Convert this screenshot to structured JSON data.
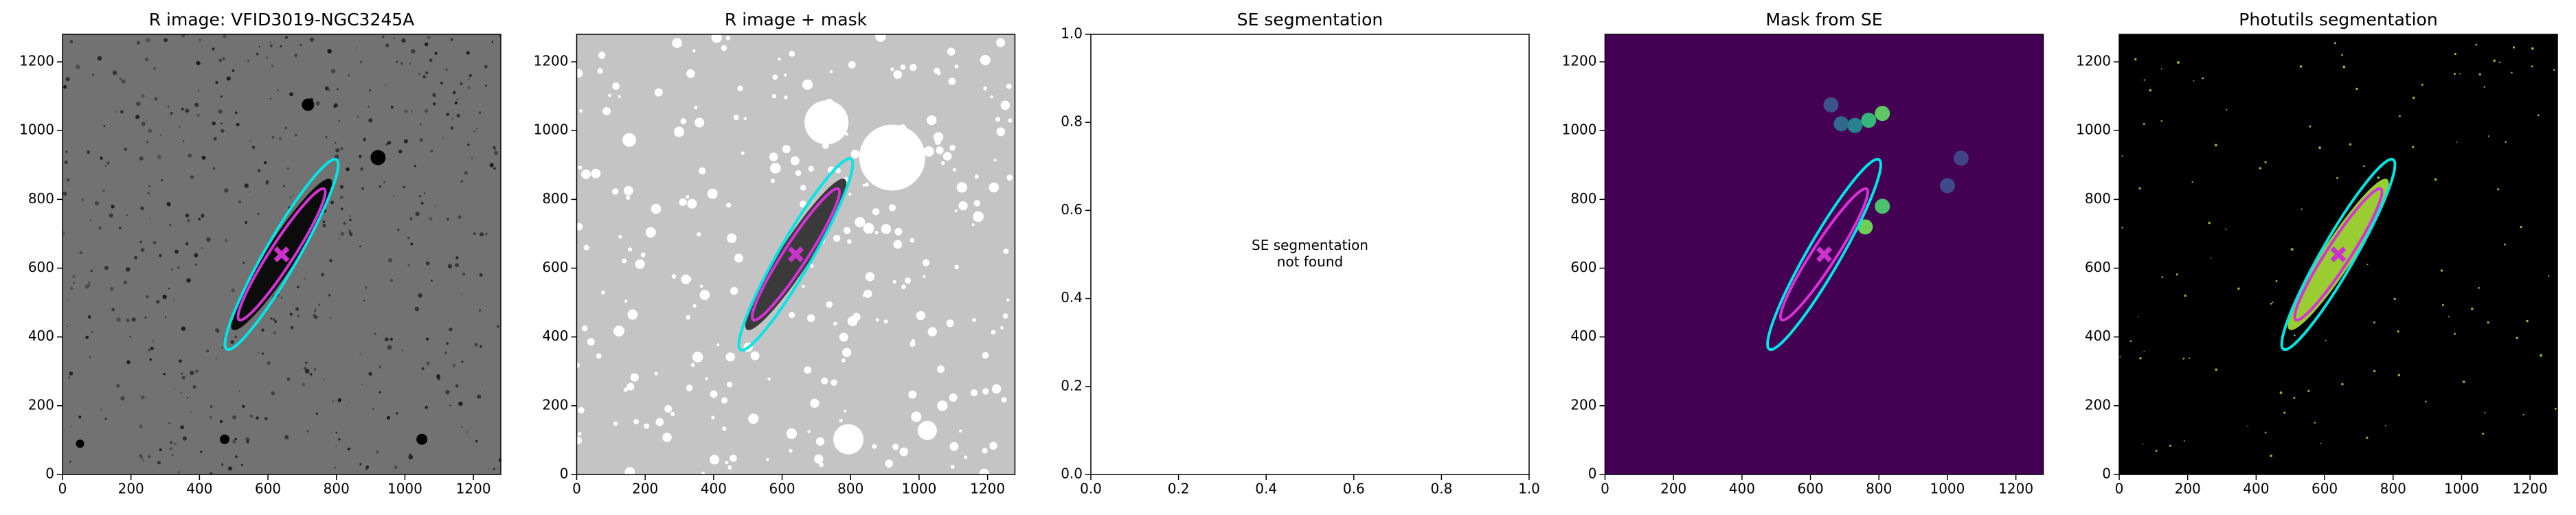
{
  "chart_data": [
    {
      "type": "image",
      "title": "R image: VFID3019-NGC3245A",
      "background": "#727272",
      "xlim": [
        0,
        1280
      ],
      "ylim": [
        0,
        1280
      ],
      "xticks": [
        0,
        200,
        400,
        600,
        800,
        1000,
        1200
      ],
      "yticks": [
        0,
        200,
        400,
        600,
        800,
        1000,
        1200
      ],
      "ellipses": [
        {
          "color": "#00e5e5",
          "cx": 640,
          "cy": 640,
          "a": 320,
          "b": 48,
          "theta": 60
        },
        {
          "color": "#d633d6",
          "cx": 640,
          "cy": 640,
          "a": 228,
          "b": 34,
          "theta": 57
        }
      ],
      "center": {
        "color": "#cc33cc",
        "x": 640,
        "y": 640
      }
    },
    {
      "type": "image",
      "title": "R image + mask",
      "background": "#c4c4c4",
      "xlim": [
        0,
        1280
      ],
      "ylim": [
        0,
        1280
      ],
      "xticks": [
        0,
        200,
        400,
        600,
        800,
        1000,
        1200
      ],
      "yticks": [
        0,
        200,
        400,
        600,
        800,
        1000,
        1200
      ],
      "ellipses": [
        {
          "color": "#00e5e5",
          "cx": 640,
          "cy": 640,
          "a": 322,
          "b": 48,
          "theta": 60
        },
        {
          "color": "#d633d6",
          "cx": 640,
          "cy": 640,
          "a": 228,
          "b": 34,
          "theta": 57
        }
      ],
      "center": {
        "color": "#cc33cc",
        "x": 640,
        "y": 640
      }
    },
    {
      "type": "image",
      "title": "SE segmentation",
      "background": "#ffffff",
      "xlim": [
        0,
        1
      ],
      "ylim": [
        0,
        1
      ],
      "xticks": [
        {
          "value": 0,
          "label": "0.0"
        },
        {
          "value": 0.2,
          "label": "0.2"
        },
        {
          "value": 0.4,
          "label": "0.4"
        },
        {
          "value": 0.6,
          "label": "0.6"
        },
        {
          "value": 0.8,
          "label": "0.8"
        },
        {
          "value": 1,
          "label": "1.0"
        }
      ],
      "yticks": [
        {
          "value": 0,
          "label": "0.0"
        },
        {
          "value": 0.2,
          "label": "0.2"
        },
        {
          "value": 0.4,
          "label": "0.4"
        },
        {
          "value": 0.6,
          "label": "0.6"
        },
        {
          "value": 0.8,
          "label": "0.8"
        },
        {
          "value": 1,
          "label": "1.0"
        }
      ],
      "annotation": [
        "SE segmentation",
        "not found"
      ]
    },
    {
      "type": "image",
      "title": "Mask from SE",
      "background": "#440154",
      "xlim": [
        0,
        1280
      ],
      "ylim": [
        0,
        1280
      ],
      "xticks": [
        0,
        200,
        400,
        600,
        800,
        1000,
        1200
      ],
      "yticks": [
        0,
        200,
        400,
        600,
        800,
        1000,
        1200
      ],
      "blobs": {
        "x": [
          660,
          690,
          730,
          770,
          810,
          1000,
          1040,
          810,
          760
        ],
        "y": [
          1075,
          1020,
          1015,
          1030,
          1050,
          840,
          920,
          780,
          720
        ],
        "colors": [
          "#3b528b",
          "#31688e",
          "#26828e",
          "#35b779",
          "#5ec962",
          "#3e4a89",
          "#414487",
          "#4ac16d",
          "#6ece58"
        ]
      },
      "ellipses": [
        {
          "color": "#00e5e5",
          "cx": 640,
          "cy": 640,
          "a": 320,
          "b": 48,
          "theta": 60
        },
        {
          "color": "#d633d6",
          "cx": 640,
          "cy": 640,
          "a": 228,
          "b": 34,
          "theta": 57
        }
      ],
      "center": {
        "color": "#cc33cc",
        "x": 640,
        "y": 640
      }
    },
    {
      "type": "image",
      "title": "Photutils segmentation",
      "background": "#000000",
      "xlim": [
        0,
        1280
      ],
      "ylim": [
        0,
        1280
      ],
      "xticks": [
        0,
        200,
        400,
        600,
        800,
        1000,
        1200
      ],
      "yticks": [
        0,
        200,
        400,
        600,
        800,
        1000,
        1200
      ],
      "ellipses": [
        {
          "color": "#00e5e5",
          "cx": 640,
          "cy": 640,
          "a": 320,
          "b": 48,
          "theta": 60
        },
        {
          "color": "#d633d6",
          "cx": 640,
          "cy": 640,
          "a": 228,
          "b": 34,
          "theta": 57
        }
      ],
      "center": {
        "color": "#cc33cc",
        "x": 640,
        "y": 640
      }
    }
  ]
}
